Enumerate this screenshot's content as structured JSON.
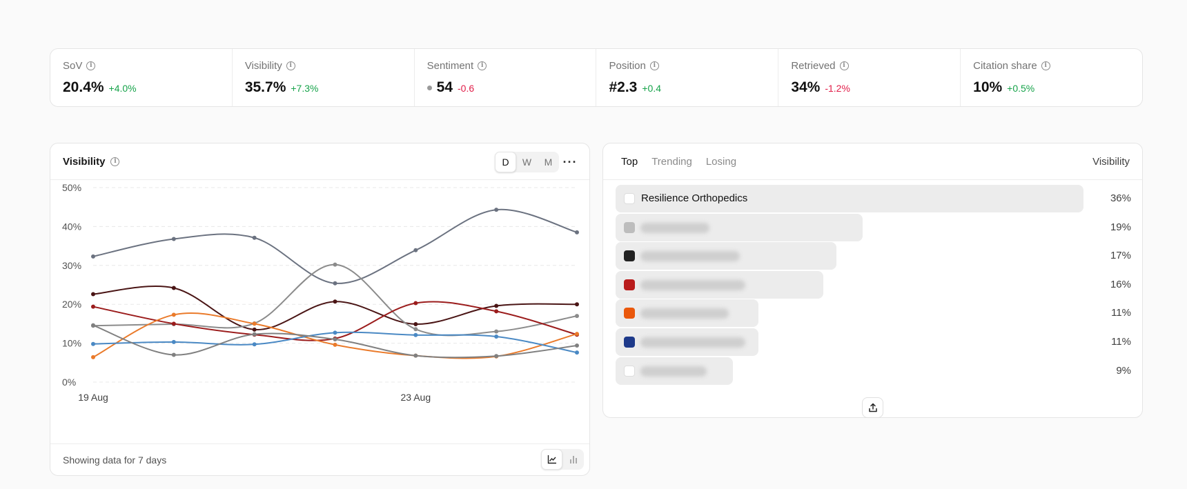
{
  "metrics": [
    {
      "label": "SoV",
      "value": "20.4%",
      "delta": "+4.0%",
      "trend": "pos",
      "icon": "info-icon"
    },
    {
      "label": "Visibility",
      "value": "35.7%",
      "delta": "+7.3%",
      "trend": "pos",
      "icon": "info-icon"
    },
    {
      "label": "Sentiment",
      "value": "54",
      "delta": "-0.6",
      "trend": "neg",
      "icon": "info-icon",
      "indicator": "neutral-dot"
    },
    {
      "label": "Position",
      "value": "#2.3",
      "delta": "+0.4",
      "trend": "pos",
      "icon": "info-icon"
    },
    {
      "label": "Retrieved",
      "value": "34%",
      "delta": "-1.2%",
      "trend": "neg",
      "icon": "info-icon"
    },
    {
      "label": "Citation share",
      "value": "10%",
      "delta": "+0.5%",
      "trend": "pos",
      "icon": "info-icon"
    }
  ],
  "visibility_chart": {
    "title": "Visibility",
    "periods": [
      "D",
      "W",
      "M"
    ],
    "active_period": "D",
    "more_label": "···",
    "footer": "Showing data for 7 days",
    "view_modes": [
      "line-chart-icon",
      "bar-chart-icon"
    ],
    "active_view": "line-chart-icon"
  },
  "chart_data": {
    "type": "line",
    "x": [
      "19 Aug",
      "20 Aug",
      "21 Aug",
      "22 Aug",
      "23 Aug",
      "24 Aug",
      "25 Aug"
    ],
    "x_tick_labels": [
      "19 Aug",
      "23 Aug"
    ],
    "ylim": [
      0,
      50
    ],
    "y_ticks": [
      "0%",
      "10%",
      "20%",
      "30%",
      "40%",
      "50%"
    ],
    "grid": true,
    "series": [
      {
        "color": "#6b7280",
        "values": [
          32.3,
          36.8,
          37.1,
          25.4,
          33.9,
          44.3,
          38.5
        ]
      },
      {
        "color": "#4a1515",
        "values": [
          22.6,
          24.2,
          13.5,
          20.7,
          14.9,
          19.6,
          20.0
        ]
      },
      {
        "color": "#8b8b8b",
        "values": [
          14.5,
          14.9,
          15.1,
          30.2,
          13.6,
          13.0,
          17.0
        ]
      },
      {
        "color": "#9b1c1c",
        "values": [
          19.4,
          15.0,
          12.2,
          11.2,
          20.3,
          18.2,
          12.2
        ]
      },
      {
        "color": "#ea7a2a",
        "values": [
          6.4,
          17.3,
          15.0,
          9.6,
          6.8,
          6.6,
          12.4
        ]
      },
      {
        "color": "#4a89c4",
        "values": [
          9.8,
          10.3,
          9.7,
          12.7,
          12.1,
          11.7,
          7.6
        ]
      },
      {
        "color": "#808080",
        "values": [
          14.6,
          7.0,
          12.3,
          11.0,
          6.8,
          6.7,
          9.4
        ]
      }
    ]
  },
  "ranking": {
    "tabs": [
      "Top",
      "Trending",
      "Losing"
    ],
    "active_tab": "Top",
    "column_label": "Visibility",
    "items": [
      {
        "name": "Resilience Orthopedics",
        "value": "36%",
        "share": 0.36,
        "icon": "resilience-logo-icon",
        "icon_color": "#ffffff",
        "blurred": false
      },
      {
        "name": "",
        "value": "19%",
        "share": 0.19,
        "icon": "text-logo-icon",
        "icon_color": "#bdbdbd",
        "blurred": true
      },
      {
        "name": "",
        "value": "17%",
        "share": 0.17,
        "icon": "building-logo-icon",
        "icon_color": "#222222",
        "blurred": true
      },
      {
        "name": "",
        "value": "16%",
        "share": 0.16,
        "icon": "shield-logo-icon",
        "icon_color": "#b91c1c",
        "blurred": true
      },
      {
        "name": "",
        "value": "11%",
        "share": 0.11,
        "icon": "swirl-logo-icon",
        "icon_color": "#ea580c",
        "blurred": true
      },
      {
        "name": "",
        "value": "11%",
        "share": 0.11,
        "icon": "o-logo-icon",
        "icon_color": "#1e3a8a",
        "blurred": true
      },
      {
        "name": "",
        "value": "9%",
        "share": 0.09,
        "icon": "d-logo-icon",
        "icon_color": "#ffffff",
        "blurred": true
      }
    ],
    "export_icon": "export-icon"
  }
}
